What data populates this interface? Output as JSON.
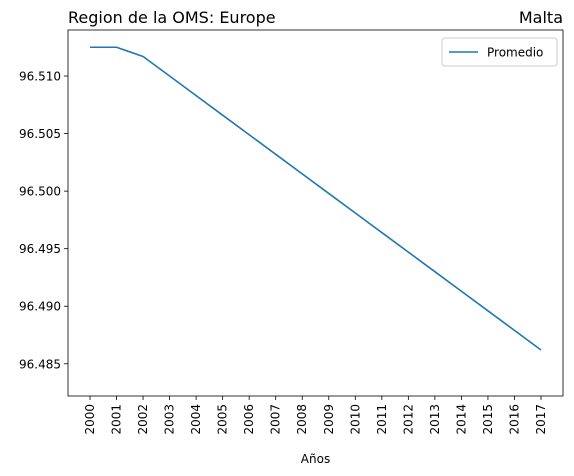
{
  "chart_data": {
    "type": "line",
    "title_left": "Region de la OMS: Europe",
    "title_right": "Malta",
    "xlabel": "Años",
    "ylabel": "",
    "x": [
      "2000",
      "2001",
      "2002",
      "2003",
      "2004",
      "2005",
      "2006",
      "2007",
      "2008",
      "2009",
      "2010",
      "2011",
      "2012",
      "2013",
      "2014",
      "2015",
      "2016",
      "2017"
    ],
    "ylim": [
      96.4822,
      96.514
    ],
    "yticks": [
      "96.485",
      "96.490",
      "96.495",
      "96.500",
      "96.505",
      "96.510"
    ],
    "grid": false,
    "legend_position": "top-right",
    "series": [
      {
        "name": "Promedio",
        "color": "#1f77b4",
        "values": [
          96.5125,
          96.5125,
          96.5117,
          96.51,
          96.5083,
          96.5066,
          96.5049,
          96.5032,
          96.5015,
          96.4998,
          96.4981,
          96.4964,
          96.4947,
          96.493,
          96.4913,
          96.4896,
          96.4879,
          96.4862
        ]
      }
    ]
  }
}
